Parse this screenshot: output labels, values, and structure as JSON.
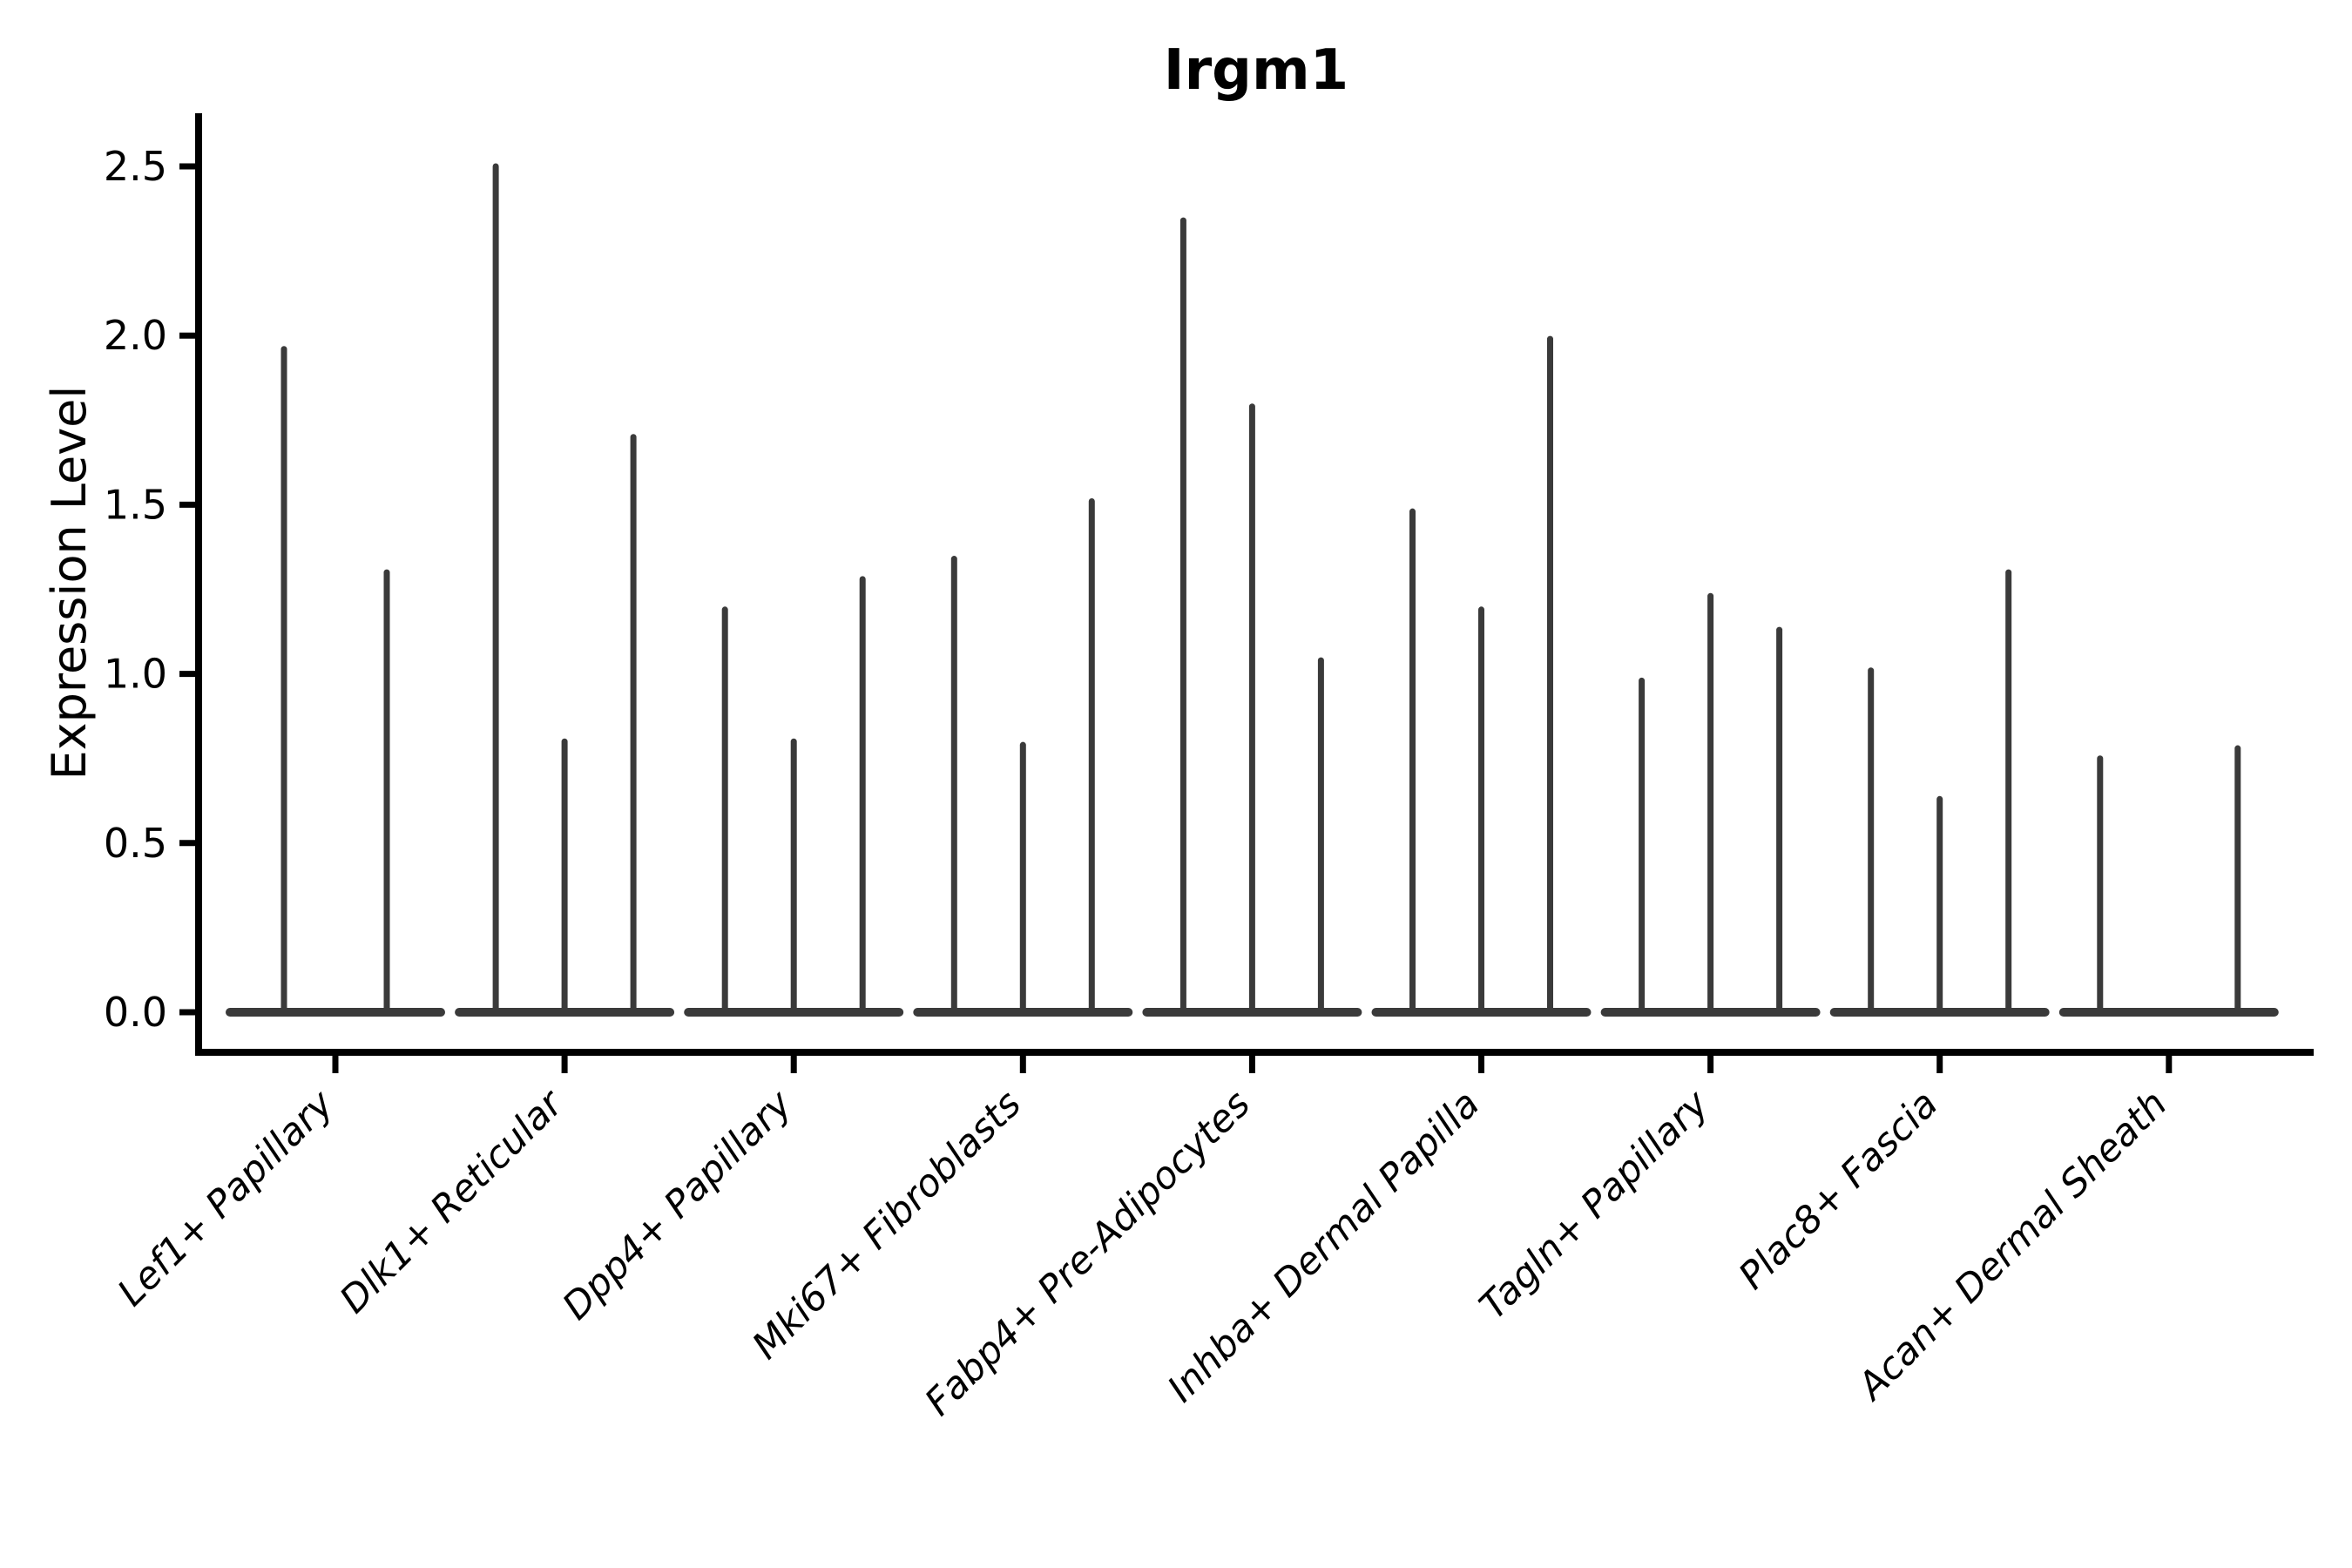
{
  "title": "Irgm1",
  "axes": {
    "ylabel": "Expression Level",
    "xlabel": "",
    "grid": false,
    "legend": "none"
  },
  "chart_data": {
    "type": "violin",
    "style": "thin-spike violins with wide flat base at 0 (single-cell expression VlnPlot)",
    "title": "Irgm1",
    "xlabel": "",
    "ylabel": "Expression Level",
    "ylim": [
      0,
      2.65
    ],
    "yticks": [
      {
        "label": "0.0",
        "value": 0.0
      },
      {
        "label": "0.5",
        "value": 0.5
      },
      {
        "label": "1.0",
        "value": 1.0
      },
      {
        "label": "1.5",
        "value": 1.5
      },
      {
        "label": "2.0",
        "value": 2.0
      },
      {
        "label": "2.5",
        "value": 2.5
      }
    ],
    "categories": [
      "Lef1+ Papillary",
      "Dlk1+ Reticular",
      "Dpp4+ Papillary",
      "Mki67+ Fibroblasts",
      "Fabp4+ Pre-Adipocytes",
      "Inhba+ Dermal Papilla",
      "Tagln+ Papillary",
      "Plac8+ Fascia",
      "Acan+ Dermal Sheath"
    ],
    "groups": [
      {
        "label": "Lef1+ Papillary",
        "violin_maxima": [
          1.96,
          1.3
        ]
      },
      {
        "label": "Dlk1+ Reticular",
        "violin_maxima": [
          2.5,
          0.8,
          1.7
        ]
      },
      {
        "label": "Dpp4+ Papillary",
        "violin_maxima": [
          1.19,
          0.8,
          1.28
        ]
      },
      {
        "label": "Mki67+ Fibroblasts",
        "violin_maxima": [
          1.34,
          0.79,
          1.51
        ]
      },
      {
        "label": "Fabp4+ Pre-Adipocytes",
        "violin_maxima": [
          2.34,
          1.79,
          1.04
        ]
      },
      {
        "label": "Inhba+ Dermal Papilla",
        "violin_maxima": [
          1.48,
          1.19,
          1.99
        ]
      },
      {
        "label": "Tagln+ Papillary",
        "violin_maxima": [
          0.98,
          1.23,
          1.13
        ]
      },
      {
        "label": "Plac8+ Fascia",
        "violin_maxima": [
          1.01,
          0.63,
          1.3
        ]
      },
      {
        "label": "Acan+ Dermal Sheath",
        "violin_maxima": [
          0.75,
          0.0,
          0.78
        ]
      }
    ],
    "violin_color": "#3a3a3a",
    "axis_color": "#000000"
  }
}
